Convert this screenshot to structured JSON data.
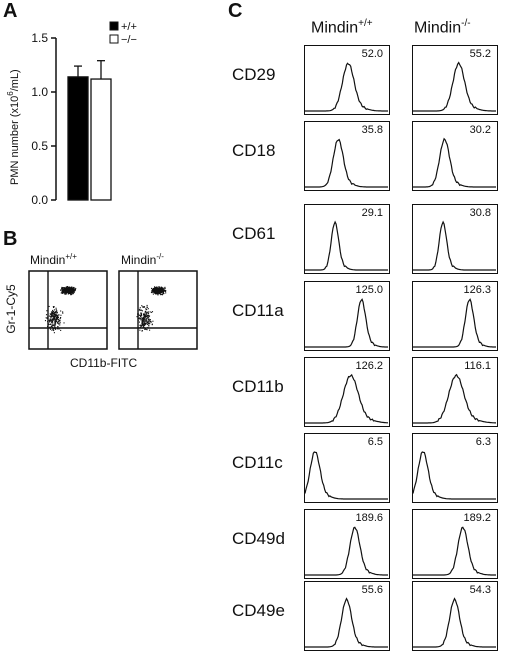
{
  "panels": {
    "a": "A",
    "b": "B",
    "c": "C"
  },
  "chart_data": [
    {
      "panel": "A",
      "type": "bar",
      "ylabel": "PMN number (x10⁶/mL)",
      "ylabel_parts": {
        "pre": "PMN number (x10",
        "sup": "6",
        "post": "/mL)"
      },
      "ylim": [
        0,
        1.5
      ],
      "yticks": [
        "0.0",
        "0.5",
        "1.0",
        "1.5"
      ],
      "categories": [
        "+/+",
        "−/−"
      ],
      "values": [
        1.14,
        1.12
      ],
      "errors": [
        0.1,
        0.17
      ],
      "legend": [
        {
          "label": "+/+",
          "fill": "#000000"
        },
        {
          "label": "−/−",
          "fill": "#ffffff"
        }
      ]
    },
    {
      "panel": "C",
      "type": "table",
      "columns": [
        {
          "base": "Mindin",
          "sup": "+/+"
        },
        {
          "base": "Mindin",
          "sup": "-/-"
        }
      ],
      "rows": [
        {
          "marker": "CD29",
          "values": [
            "52.0",
            "55.2"
          ],
          "peak": [
            0.52,
            0.55
          ],
          "width": [
            0.07,
            0.07
          ]
        },
        {
          "marker": "CD18",
          "values": [
            "35.8",
            "30.2"
          ],
          "peak": [
            0.4,
            0.38
          ],
          "width": [
            0.06,
            0.06
          ]
        },
        {
          "marker": "CD61",
          "values": [
            "29.1",
            "30.8"
          ],
          "peak": [
            0.36,
            0.36
          ],
          "width": [
            0.045,
            0.045
          ]
        },
        {
          "marker": "CD11a",
          "values": [
            "125.0",
            "126.3"
          ],
          "peak": [
            0.68,
            0.68
          ],
          "width": [
            0.05,
            0.05
          ]
        },
        {
          "marker": "CD11b",
          "values": [
            "126.2",
            "116.1"
          ],
          "peak": [
            0.55,
            0.52
          ],
          "width": [
            0.09,
            0.09
          ]
        },
        {
          "marker": "CD11c",
          "values": [
            "6.5",
            "6.3"
          ],
          "peak": [
            0.12,
            0.12
          ],
          "width": [
            0.06,
            0.06
          ]
        },
        {
          "marker": "CD49d",
          "values": [
            "189.6",
            "189.2"
          ],
          "peak": [
            0.6,
            0.6
          ],
          "width": [
            0.06,
            0.06
          ]
        },
        {
          "marker": "CD49e",
          "values": [
            "55.6",
            "54.3"
          ],
          "peak": [
            0.5,
            0.5
          ],
          "width": [
            0.06,
            0.06
          ]
        }
      ]
    }
  ],
  "panel_b": {
    "titles": [
      {
        "base": "Mindin",
        "sup": "+/+"
      },
      {
        "base": "Mindin",
        "sup": "-/-"
      }
    ],
    "ylabel": "Gr-1-Cy5",
    "xlabel": "CD11b-FITC"
  }
}
